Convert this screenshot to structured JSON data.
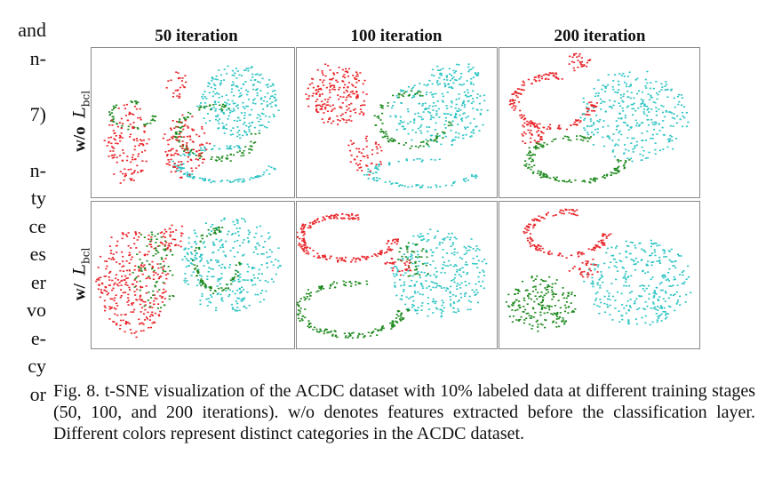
{
  "left_column_fragments": [
    "and",
    "n-",
    "",
    "7)",
    "",
    "n-",
    "ty",
    "ce",
    "es",
    "er",
    "vo",
    "e-",
    "cy",
    "or"
  ],
  "figure": {
    "column_titles": [
      "50 iteration",
      "100 iteration",
      "200 iteration"
    ],
    "row_labels": [
      {
        "prefix": "w/o",
        "symbol": "L",
        "subscript": "bcl"
      },
      {
        "prefix": "w/",
        "symbol": "L",
        "subscript": "bcl"
      }
    ],
    "colors": {
      "red": "#e8262b",
      "green": "#1f8a1f",
      "cyan": "#2ec4c4"
    },
    "caption": "Fig. 8.  t-SNE visualization of the ACDC dataset with 10% labeled data at different training stages (50, 100, and 200 iterations). w/o denotes features extracted before the classification layer. Different colors represent distinct categories in the ACDC dataset."
  }
}
